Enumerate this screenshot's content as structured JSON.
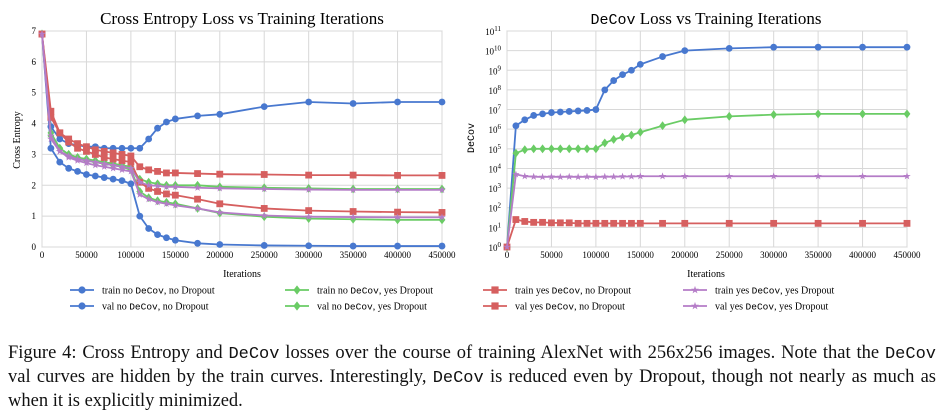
{
  "chart_data": [
    {
      "type": "line",
      "title": "Cross Entropy Loss vs Training Iterations",
      "xlabel": "Iterations",
      "ylabel": "Cross Entropy",
      "xlim": [
        0,
        450000
      ],
      "ylim": [
        0,
        7
      ],
      "xticks": [
        0,
        50000,
        100000,
        150000,
        200000,
        250000,
        300000,
        350000,
        400000,
        450000
      ],
      "yticks": [
        0,
        1,
        2,
        3,
        4,
        5,
        6,
        7
      ],
      "grid": true,
      "series": [
        {
          "id": "train_no_no",
          "marker": "circle",
          "color": "#4878cf",
          "x": [
            0,
            10000,
            20000,
            30000,
            40000,
            50000,
            60000,
            70000,
            80000,
            90000,
            100000,
            110000,
            120000,
            130000,
            140000,
            150000,
            175000,
            200000,
            250000,
            300000,
            350000,
            400000,
            450000
          ],
          "y": [
            6.9,
            3.2,
            2.75,
            2.55,
            2.45,
            2.35,
            2.3,
            2.25,
            2.2,
            2.15,
            2.05,
            1.0,
            0.6,
            0.4,
            0.3,
            0.22,
            0.12,
            0.08,
            0.05,
            0.04,
            0.03,
            0.03,
            0.03
          ]
        },
        {
          "id": "val_no_no",
          "marker": "circle",
          "color": "#4878cf",
          "x": [
            0,
            10000,
            20000,
            30000,
            40000,
            50000,
            60000,
            70000,
            80000,
            90000,
            100000,
            110000,
            120000,
            130000,
            140000,
            150000,
            175000,
            200000,
            250000,
            300000,
            350000,
            400000,
            450000
          ],
          "y": [
            6.9,
            3.9,
            3.5,
            3.35,
            3.3,
            3.25,
            3.25,
            3.2,
            3.2,
            3.2,
            3.2,
            3.2,
            3.5,
            3.85,
            4.05,
            4.15,
            4.25,
            4.3,
            4.55,
            4.7,
            4.65,
            4.7,
            4.7
          ]
        },
        {
          "id": "train_no_yes",
          "marker": "diamond",
          "color": "#6acc65",
          "x": [
            0,
            10000,
            20000,
            30000,
            40000,
            50000,
            60000,
            70000,
            80000,
            90000,
            100000,
            110000,
            120000,
            130000,
            140000,
            150000,
            175000,
            200000,
            250000,
            300000,
            350000,
            400000,
            450000
          ],
          "y": [
            6.9,
            3.6,
            3.2,
            3.0,
            2.9,
            2.8,
            2.75,
            2.7,
            2.65,
            2.6,
            2.5,
            1.8,
            1.6,
            1.5,
            1.45,
            1.4,
            1.25,
            1.1,
            0.98,
            0.92,
            0.9,
            0.88,
            0.88
          ]
        },
        {
          "id": "val_no_yes",
          "marker": "diamond",
          "color": "#6acc65",
          "x": [
            0,
            10000,
            20000,
            30000,
            40000,
            50000,
            60000,
            70000,
            80000,
            90000,
            100000,
            110000,
            120000,
            130000,
            140000,
            150000,
            175000,
            200000,
            250000,
            300000,
            350000,
            400000,
            450000
          ],
          "y": [
            6.9,
            3.7,
            3.2,
            3.0,
            2.9,
            2.85,
            2.8,
            2.75,
            2.7,
            2.65,
            2.6,
            2.2,
            2.1,
            2.05,
            2.0,
            2.0,
            2.0,
            1.95,
            1.92,
            1.9,
            1.88,
            1.88,
            1.88
          ]
        },
        {
          "id": "train_yes_no",
          "marker": "square",
          "color": "#d65f5f",
          "x": [
            0,
            10000,
            20000,
            30000,
            40000,
            50000,
            60000,
            70000,
            80000,
            90000,
            100000,
            110000,
            120000,
            130000,
            140000,
            150000,
            175000,
            200000,
            250000,
            300000,
            350000,
            400000,
            450000
          ],
          "y": [
            6.9,
            4.4,
            3.7,
            3.4,
            3.2,
            3.1,
            3.0,
            2.9,
            2.85,
            2.8,
            2.75,
            2.1,
            1.9,
            1.8,
            1.72,
            1.68,
            1.55,
            1.4,
            1.25,
            1.18,
            1.15,
            1.13,
            1.12
          ]
        },
        {
          "id": "val_yes_no",
          "marker": "square",
          "color": "#d65f5f",
          "x": [
            0,
            10000,
            20000,
            30000,
            40000,
            50000,
            60000,
            70000,
            80000,
            90000,
            100000,
            110000,
            120000,
            130000,
            140000,
            150000,
            175000,
            200000,
            250000,
            300000,
            350000,
            400000,
            450000
          ],
          "y": [
            6.9,
            4.2,
            3.7,
            3.5,
            3.35,
            3.25,
            3.15,
            3.1,
            3.05,
            3.0,
            2.95,
            2.6,
            2.5,
            2.45,
            2.4,
            2.4,
            2.38,
            2.36,
            2.35,
            2.33,
            2.33,
            2.32,
            2.32
          ]
        },
        {
          "id": "train_yes_yes",
          "marker": "star",
          "color": "#b47cc7",
          "x": [
            0,
            10000,
            20000,
            30000,
            40000,
            50000,
            60000,
            70000,
            80000,
            90000,
            100000,
            110000,
            120000,
            130000,
            140000,
            150000,
            175000,
            200000,
            250000,
            300000,
            350000,
            400000,
            450000
          ],
          "y": [
            6.9,
            3.6,
            3.1,
            2.9,
            2.8,
            2.72,
            2.65,
            2.6,
            2.55,
            2.5,
            2.45,
            1.7,
            1.55,
            1.45,
            1.4,
            1.35,
            1.25,
            1.12,
            1.02,
            0.98,
            0.97,
            0.96,
            0.96
          ]
        },
        {
          "id": "val_yes_yes",
          "marker": "star",
          "color": "#b47cc7",
          "x": [
            0,
            10000,
            20000,
            30000,
            40000,
            50000,
            60000,
            70000,
            80000,
            90000,
            100000,
            110000,
            120000,
            130000,
            140000,
            150000,
            175000,
            200000,
            250000,
            300000,
            350000,
            400000,
            450000
          ],
          "y": [
            6.9,
            3.5,
            3.1,
            2.95,
            2.85,
            2.8,
            2.75,
            2.7,
            2.65,
            2.6,
            2.55,
            2.1,
            2.0,
            1.98,
            1.95,
            1.95,
            1.92,
            1.9,
            1.88,
            1.86,
            1.85,
            1.85,
            1.85
          ]
        }
      ]
    },
    {
      "type": "line",
      "title_mono": "DeCov",
      "title_rest": " Loss vs Training Iterations",
      "xlabel": "Iterations",
      "ylabel": "DeCov",
      "xlim": [
        0,
        450000
      ],
      "yscale": "log",
      "ylim_exp": [
        0,
        11
      ],
      "ytick_base": "10",
      "xticks": [
        0,
        50000,
        100000,
        150000,
        200000,
        250000,
        300000,
        350000,
        400000,
        450000
      ],
      "yticks_exp": [
        0,
        1,
        2,
        3,
        4,
        5,
        6,
        7,
        8,
        9,
        10,
        11
      ],
      "grid": true,
      "series": [
        {
          "id": "train_no_no",
          "marker": "circle",
          "color": "#4878cf",
          "x": [
            0,
            10000,
            20000,
            30000,
            40000,
            50000,
            60000,
            70000,
            80000,
            90000,
            100000,
            110000,
            120000,
            130000,
            140000,
            150000,
            175000,
            200000,
            250000,
            300000,
            350000,
            400000,
            450000
          ],
          "y": [
            1,
            1500000.0,
            3000000.0,
            5000000.0,
            6000000.0,
            7000000.0,
            7500000.0,
            8000000.0,
            8500000.0,
            9000000.0,
            10000000.0,
            100000000.0,
            300000000.0,
            600000000.0,
            1000000000.0,
            2000000000.0,
            5000000000.0,
            10000000000.0,
            13000000000.0,
            15000000000.0,
            15000000000.0,
            15000000000.0,
            15000000000.0
          ]
        },
        {
          "id": "train_no_yes",
          "marker": "diamond",
          "color": "#6acc65",
          "x": [
            0,
            10000,
            20000,
            30000,
            40000,
            50000,
            60000,
            70000,
            80000,
            90000,
            100000,
            110000,
            120000,
            130000,
            140000,
            150000,
            175000,
            200000,
            250000,
            300000,
            350000,
            400000,
            450000
          ],
          "y": [
            1,
            60000.0,
            90000.0,
            100000.0,
            100000.0,
            100000.0,
            100000.0,
            100000.0,
            100000.0,
            100000.0,
            100000.0,
            200000.0,
            300000.0,
            400000.0,
            500000.0,
            700000.0,
            1500000.0,
            3000000.0,
            4500000.0,
            5500000.0,
            6000000.0,
            6000000.0,
            6000000.0
          ]
        },
        {
          "id": "train_yes_no",
          "marker": "square",
          "color": "#d65f5f",
          "x": [
            0,
            10000,
            20000,
            30000,
            40000,
            50000,
            60000,
            70000,
            80000,
            90000,
            100000,
            110000,
            120000,
            130000,
            140000,
            150000,
            175000,
            200000,
            250000,
            300000,
            350000,
            400000,
            450000
          ],
          "y": [
            1,
            25,
            20,
            18,
            18,
            17,
            17,
            17,
            16,
            16,
            16,
            16,
            16,
            16,
            16,
            16,
            16,
            16,
            16,
            16,
            16,
            16,
            16
          ]
        },
        {
          "id": "train_yes_yes",
          "marker": "star",
          "color": "#b47cc7",
          "x": [
            0,
            10000,
            20000,
            30000,
            40000,
            50000,
            60000,
            70000,
            80000,
            90000,
            100000,
            110000,
            120000,
            130000,
            140000,
            150000,
            175000,
            200000,
            250000,
            300000,
            350000,
            400000,
            450000
          ],
          "y": [
            1,
            5000,
            4000,
            3800,
            3700,
            3800,
            3700,
            3800,
            3700,
            3800,
            3700,
            3800,
            3800,
            3900,
            3900,
            4000,
            4000,
            4000,
            4000,
            4000,
            4000,
            4000,
            4000
          ]
        }
      ]
    }
  ],
  "legend": [
    {
      "id": "train_no_no",
      "label_a": "train no ",
      "mono": "DeCov",
      "label_b": ", no  Dropout",
      "marker": "circle",
      "color": "#4878cf"
    },
    {
      "id": "train_no_yes",
      "label_a": "train no ",
      "mono": "DeCov",
      "label_b": ", yes Dropout",
      "marker": "diamond",
      "color": "#6acc65"
    },
    {
      "id": "train_yes_no",
      "label_a": "train yes ",
      "mono": "DeCov",
      "label_b": ", no  Dropout",
      "marker": "square",
      "color": "#d65f5f"
    },
    {
      "id": "train_yes_yes",
      "label_a": "train yes ",
      "mono": "DeCov",
      "label_b": ", yes Dropout",
      "marker": "star",
      "color": "#b47cc7"
    },
    {
      "id": "val_no_no",
      "label_a": "val no ",
      "mono": "DeCov",
      "label_b": ", no  Dropout",
      "marker": "circle",
      "color": "#4878cf"
    },
    {
      "id": "val_no_yes",
      "label_a": "val no ",
      "mono": "DeCov",
      "label_b": ", yes Dropout",
      "marker": "diamond",
      "color": "#6acc65"
    },
    {
      "id": "val_yes_no",
      "label_a": "val yes ",
      "mono": "DeCov",
      "label_b": ", no  Dropout",
      "marker": "square",
      "color": "#d65f5f"
    },
    {
      "id": "val_yes_yes",
      "label_a": "val yes ",
      "mono": "DeCov",
      "label_b": ", yes Dropout",
      "marker": "star",
      "color": "#b47cc7"
    }
  ],
  "caption": {
    "p1": "Figure 4: Cross Entropy and ",
    "m1": "DeCov",
    "p2": " losses over the course of training AlexNet with 256x256 images.  Note that the ",
    "m2": "DeCov",
    "p3": " val curves are hidden by the train curves.  Interestingly, ",
    "m3": "DeCov",
    "p4": " is reduced even by Dropout, though not nearly as much as when it is explicitly minimized."
  }
}
